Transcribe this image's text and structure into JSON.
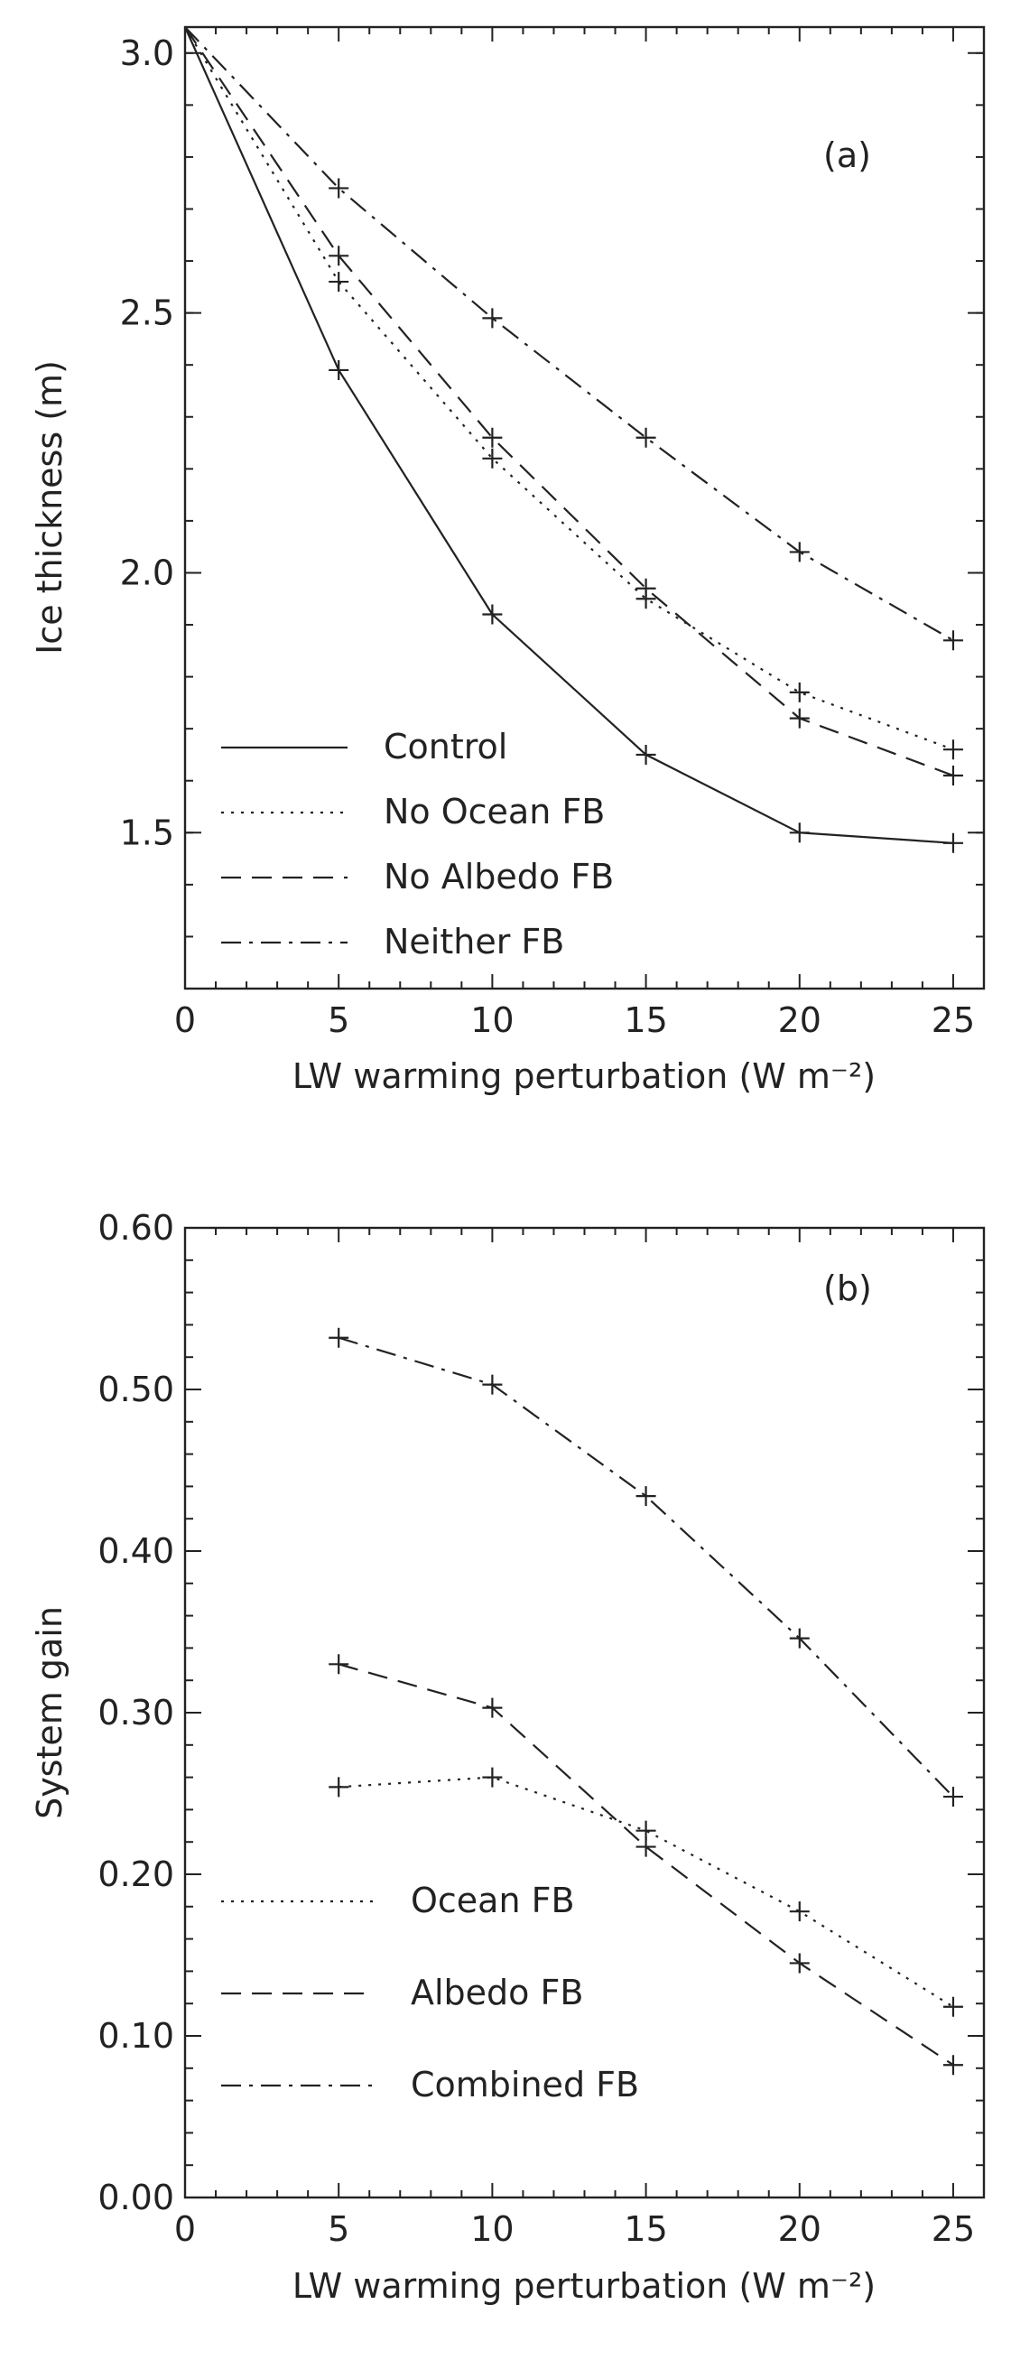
{
  "chart_data": [
    {
      "panel": "(a)",
      "type": "line",
      "xlabel": "LW warming perturbation (W m⁻²)",
      "ylabel": "Ice thickness (m)",
      "xlim": [
        0,
        26
      ],
      "ylim": [
        1.2,
        3.05
      ],
      "xticks": [
        0,
        5,
        10,
        15,
        20,
        25
      ],
      "yticks": [
        1.5,
        2.0,
        2.5,
        3.0
      ],
      "ytick_labels": [
        "1.5",
        "2.0",
        "2.5",
        "3.0"
      ],
      "legend_position": "bottom-left",
      "series": [
        {
          "name": "Control",
          "style": "solid",
          "x": [
            0,
            5,
            10,
            15,
            20,
            25
          ],
          "y": [
            3.05,
            2.39,
            1.92,
            1.65,
            1.5,
            1.48
          ]
        },
        {
          "name": "No Ocean FB",
          "style": "dotted",
          "x": [
            0,
            5,
            10,
            15,
            20,
            25
          ],
          "y": [
            3.05,
            2.56,
            2.22,
            1.95,
            1.77,
            1.66
          ]
        },
        {
          "name": "No Albedo FB",
          "style": "dashed",
          "x": [
            0,
            5,
            10,
            15,
            20,
            25
          ],
          "y": [
            3.05,
            2.61,
            2.26,
            1.97,
            1.72,
            1.61
          ]
        },
        {
          "name": "Neither FB",
          "style": "dashdot",
          "x": [
            0,
            5,
            10,
            15,
            20,
            25
          ],
          "y": [
            3.05,
            2.74,
            2.49,
            2.26,
            2.04,
            1.87
          ]
        }
      ]
    },
    {
      "panel": "(b)",
      "type": "line",
      "xlabel": "LW warming perturbation (W m⁻²)",
      "ylabel": "System gain",
      "xlim": [
        0,
        26
      ],
      "ylim": [
        0,
        0.6
      ],
      "xticks": [
        0,
        5,
        10,
        15,
        20,
        25
      ],
      "yticks": [
        0,
        0.1,
        0.2,
        0.3,
        0.4,
        0.5,
        0.6
      ],
      "ytick_labels": [
        "0.00",
        "0.10",
        "0.20",
        "0.30",
        "0.40",
        "0.50",
        "0.60"
      ],
      "legend_position": "bottom-left",
      "series": [
        {
          "name": "Ocean FB",
          "style": "dotted",
          "x": [
            5,
            10,
            15,
            20,
            25
          ],
          "y": [
            0.254,
            0.26,
            0.227,
            0.177,
            0.118
          ]
        },
        {
          "name": "Albedo FB",
          "style": "dashed",
          "x": [
            5,
            10,
            15,
            20,
            25
          ],
          "y": [
            0.33,
            0.303,
            0.217,
            0.145,
            0.082
          ]
        },
        {
          "name": "Combined FB",
          "style": "dashdot",
          "x": [
            5,
            10,
            15,
            20,
            25
          ],
          "y": [
            0.532,
            0.503,
            0.434,
            0.346,
            0.248
          ]
        }
      ]
    }
  ]
}
